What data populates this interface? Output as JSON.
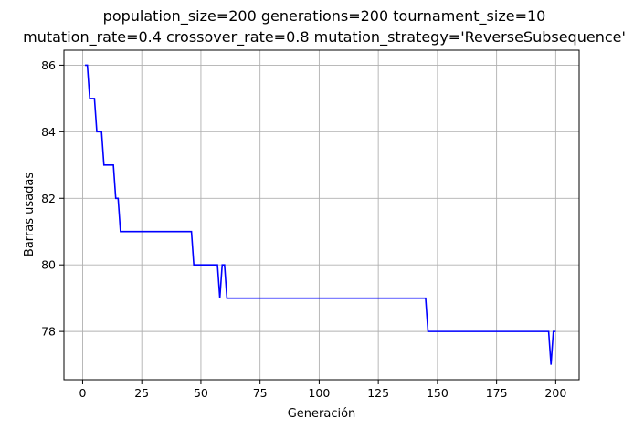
{
  "chart_data": {
    "type": "line",
    "title_lines": [
      "population_size=200 generations=200 tournament_size=10",
      "mutation_rate=0.4 crossover_rate=0.8 mutation_strategy='ReverseSubsequence'"
    ],
    "xlabel": "Generación",
    "ylabel": "Barras usadas",
    "xlim": [
      -7.9,
      209.9
    ],
    "ylim": [
      76.55,
      86.45
    ],
    "xticks": [
      0,
      25,
      50,
      75,
      100,
      125,
      150,
      175,
      200
    ],
    "yticks": [
      78,
      80,
      82,
      84,
      86
    ],
    "grid": true,
    "line_color": "#0000ff",
    "series": [
      {
        "x": [
          1,
          2,
          3,
          4,
          5,
          6,
          7,
          8,
          9,
          10,
          11,
          12,
          13,
          14,
          15,
          16,
          17,
          46,
          47,
          57,
          58,
          59,
          60,
          61,
          145,
          146,
          197,
          198,
          199,
          200
        ],
        "values": [
          86,
          86,
          85,
          85,
          85,
          84,
          84,
          84,
          83,
          83,
          83,
          83,
          83,
          82,
          82,
          81,
          81,
          81,
          80,
          80,
          79,
          80,
          80,
          79,
          79,
          78,
          78,
          77,
          78,
          78
        ]
      }
    ]
  }
}
